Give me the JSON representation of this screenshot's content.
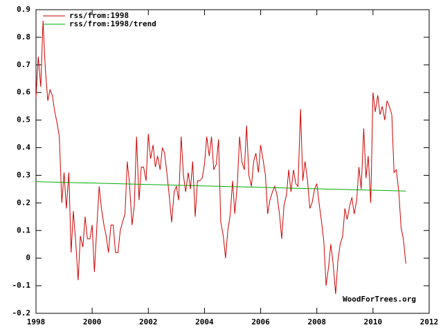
{
  "chart_data": {
    "type": "line",
    "xlim": [
      1998,
      2012
    ],
    "xticks": [
      1998,
      2000,
      2002,
      2004,
      2006,
      2008,
      2010,
      2012
    ],
    "ylim": [
      -0.2,
      0.9
    ],
    "yticks": [
      0.9,
      0.8,
      0.7,
      0.6,
      0.5,
      0.4,
      0.3,
      0.2,
      0.1,
      0,
      -0.1,
      -0.2
    ],
    "legend": "top-left",
    "annotation": "WoodForTrees.org",
    "series": [
      {
        "name": "rss/from:1998",
        "color": "#cc0000",
        "x": [
          1998.0,
          1998.08,
          1998.17,
          1998.25,
          1998.33,
          1998.42,
          1998.5,
          1998.58,
          1998.67,
          1998.75,
          1998.83,
          1998.92,
          1999.0,
          1999.08,
          1999.17,
          1999.25,
          1999.33,
          1999.42,
          1999.5,
          1999.58,
          1999.67,
          1999.75,
          1999.83,
          1999.92,
          2000.0,
          2000.08,
          2000.17,
          2000.25,
          2000.33,
          2000.42,
          2000.5,
          2000.58,
          2000.67,
          2000.75,
          2000.83,
          2000.92,
          2001.0,
          2001.08,
          2001.17,
          2001.25,
          2001.33,
          2001.42,
          2001.5,
          2001.58,
          2001.67,
          2001.75,
          2001.83,
          2001.92,
          2002.0,
          2002.08,
          2002.17,
          2002.25,
          2002.33,
          2002.42,
          2002.5,
          2002.58,
          2002.67,
          2002.75,
          2002.83,
          2002.92,
          2003.0,
          2003.08,
          2003.17,
          2003.25,
          2003.33,
          2003.42,
          2003.5,
          2003.58,
          2003.67,
          2003.75,
          2003.83,
          2003.92,
          2004.0,
          2004.08,
          2004.17,
          2004.25,
          2004.33,
          2004.42,
          2004.5,
          2004.58,
          2004.67,
          2004.75,
          2004.83,
          2004.92,
          2005.0,
          2005.08,
          2005.17,
          2005.25,
          2005.33,
          2005.42,
          2005.5,
          2005.58,
          2005.67,
          2005.75,
          2005.83,
          2005.92,
          2006.0,
          2006.08,
          2006.17,
          2006.25,
          2006.33,
          2006.42,
          2006.5,
          2006.58,
          2006.67,
          2006.75,
          2006.83,
          2006.92,
          2007.0,
          2007.08,
          2007.17,
          2007.25,
          2007.33,
          2007.42,
          2007.5,
          2007.58,
          2007.67,
          2007.75,
          2007.83,
          2007.92,
          2008.0,
          2008.08,
          2008.17,
          2008.25,
          2008.33,
          2008.42,
          2008.5,
          2008.58,
          2008.67,
          2008.75,
          2008.83,
          2008.92,
          2009.0,
          2009.08,
          2009.17,
          2009.25,
          2009.33,
          2009.42,
          2009.5,
          2009.58,
          2009.67,
          2009.75,
          2009.83,
          2009.92,
          2010.0,
          2010.08,
          2010.17,
          2010.25,
          2010.33,
          2010.42,
          2010.5,
          2010.58,
          2010.67,
          2010.75,
          2010.83,
          2010.92,
          2011.0,
          2011.08,
          2011.17
        ],
        "values": [
          0.58,
          0.73,
          0.62,
          0.86,
          0.69,
          0.57,
          0.61,
          0.59,
          0.53,
          0.49,
          0.44,
          0.2,
          0.31,
          0.18,
          0.31,
          0.02,
          0.17,
          0.05,
          -0.08,
          0.08,
          0.04,
          0.15,
          0.07,
          0.07,
          0.12,
          -0.05,
          0.12,
          0.26,
          0.18,
          0.12,
          0.08,
          0.02,
          0.12,
          0.12,
          0.02,
          0.02,
          0.1,
          0.13,
          0.16,
          0.35,
          0.27,
          0.12,
          0.19,
          0.44,
          0.21,
          0.33,
          0.33,
          0.28,
          0.45,
          0.36,
          0.41,
          0.33,
          0.37,
          0.32,
          0.4,
          0.38,
          0.3,
          0.22,
          0.13,
          0.24,
          0.26,
          0.21,
          0.44,
          0.3,
          0.24,
          0.31,
          0.25,
          0.35,
          0.15,
          0.28,
          0.28,
          0.29,
          0.34,
          0.44,
          0.37,
          0.44,
          0.32,
          0.34,
          0.43,
          0.13,
          0.08,
          0.0,
          0.1,
          0.16,
          0.28,
          0.16,
          0.27,
          0.44,
          0.35,
          0.32,
          0.48,
          0.3,
          0.26,
          0.35,
          0.38,
          0.31,
          0.41,
          0.36,
          0.3,
          0.16,
          0.21,
          0.24,
          0.26,
          0.23,
          0.16,
          0.07,
          0.19,
          0.23,
          0.32,
          0.24,
          0.32,
          0.27,
          0.26,
          0.54,
          0.28,
          0.35,
          0.28,
          0.18,
          0.2,
          0.25,
          0.27,
          0.2,
          0.13,
          0.06,
          -0.1,
          -0.03,
          0.05,
          -0.02,
          -0.13,
          -0.01,
          0.05,
          0.08,
          0.18,
          0.14,
          0.19,
          0.22,
          0.16,
          0.21,
          0.33,
          0.25,
          0.47,
          0.29,
          0.37,
          0.2,
          0.6,
          0.53,
          0.59,
          0.52,
          0.55,
          0.5,
          0.57,
          0.55,
          0.52,
          0.31,
          0.32,
          0.24,
          0.11,
          0.07,
          -0.02
        ]
      },
      {
        "name": "rss/from:1998/trend",
        "color": "#00aa00",
        "x": [
          1998.0,
          2011.17
        ],
        "values": [
          0.277,
          0.243
        ]
      }
    ]
  }
}
